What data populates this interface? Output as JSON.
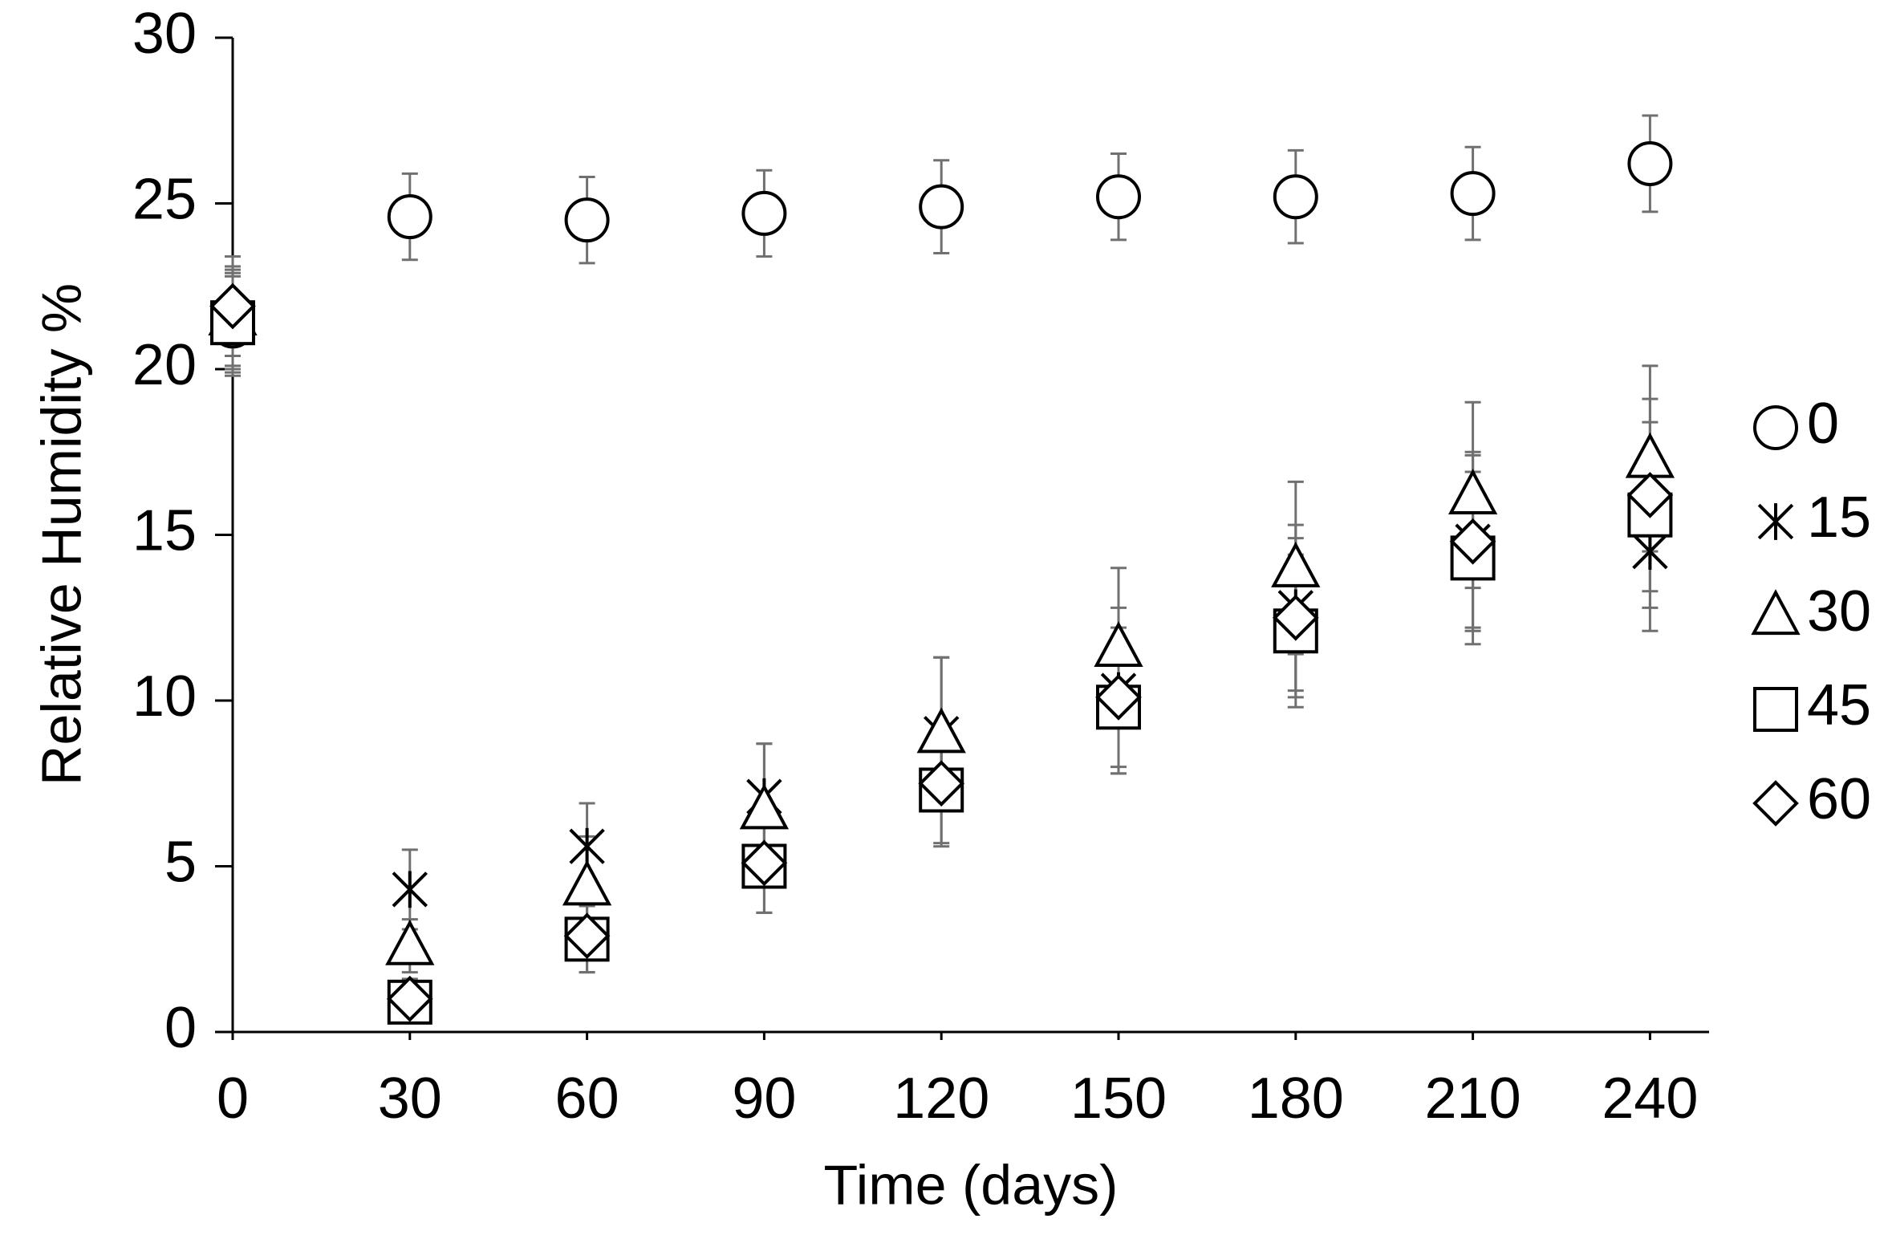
{
  "chart_data": {
    "type": "scatter",
    "x_label": "Time (days)",
    "y_label": "Relative Humidity %",
    "x": [
      0,
      30,
      60,
      90,
      120,
      150,
      180,
      210,
      240
    ],
    "xlim": [
      0,
      250
    ],
    "xticks": [
      0,
      30,
      60,
      90,
      120,
      150,
      180,
      210,
      240
    ],
    "ylim": [
      0,
      30
    ],
    "yticks": [
      0,
      5,
      10,
      15,
      20,
      25,
      30
    ],
    "legend": "right",
    "color": "#000000",
    "error_color": "#707070",
    "series": [
      {
        "name": "0",
        "marker": "circle",
        "values": [
          21.3,
          24.6,
          24.5,
          24.7,
          24.9,
          25.2,
          25.2,
          25.3,
          26.2
        ],
        "errors": [
          1.5,
          1.3,
          1.3,
          1.3,
          1.4,
          1.3,
          1.4,
          1.4,
          1.45
        ]
      },
      {
        "name": "15",
        "marker": "asterisk",
        "values": [
          21.5,
          4.3,
          5.6,
          7.1,
          9.0,
          10.3,
          12.8,
          14.8,
          14.5
        ],
        "errors": [
          1.5,
          1.2,
          1.3,
          1.6,
          2.3,
          2.5,
          2.5,
          2.6,
          2.4
        ]
      },
      {
        "name": "30",
        "marker": "triangle",
        "values": [
          21.6,
          2.6,
          4.4,
          6.7,
          9.0,
          11.6,
          14.0,
          16.2,
          17.3
        ],
        "errors": [
          1.5,
          0.8,
          1.5,
          2.0,
          2.3,
          2.4,
          2.6,
          2.8,
          2.8
        ]
      },
      {
        "name": "45",
        "marker": "square",
        "values": [
          21.4,
          0.9,
          2.8,
          5.0,
          7.3,
          9.8,
          12.1,
          14.3,
          15.6
        ],
        "errors": [
          1.5,
          0.5,
          1.0,
          1.4,
          1.7,
          2.0,
          2.3,
          2.6,
          2.8
        ]
      },
      {
        "name": "60",
        "marker": "diamond",
        "values": [
          21.9,
          1.0,
          2.9,
          5.1,
          7.5,
          10.1,
          12.5,
          14.8,
          16.2
        ],
        "errors": [
          1.5,
          0.6,
          1.1,
          1.5,
          1.8,
          2.1,
          2.4,
          2.7,
          2.9
        ]
      }
    ]
  }
}
